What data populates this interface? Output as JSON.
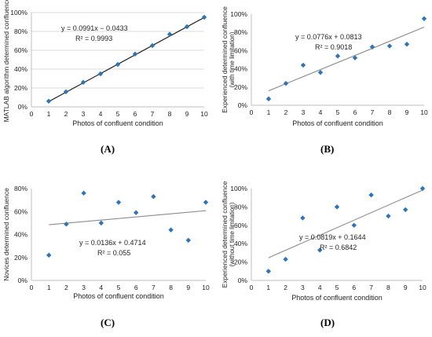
{
  "panel_letters": [
    "(A)",
    "(B)",
    "(C)",
    "(D)"
  ],
  "chart_data": [
    {
      "type": "scatter",
      "panel": "(A)",
      "xlabel": "Photos of confluent condition",
      "ylabel": "MATLAB algorithm determined confluence",
      "x": [
        1,
        2,
        3,
        4,
        5,
        6,
        7,
        8,
        9,
        10
      ],
      "y": [
        0.06,
        0.16,
        0.26,
        0.35,
        0.45,
        0.56,
        0.65,
        0.77,
        0.85,
        0.95
      ],
      "xlim": [
        0,
        10
      ],
      "ylim": [
        0,
        1.0
      ],
      "xticks": [
        "0",
        "1",
        "2",
        "3",
        "4",
        "5",
        "6",
        "7",
        "8",
        "9",
        "10"
      ],
      "yticks": [
        "0%",
        "20%",
        "40%",
        "60%",
        "80%",
        "100%"
      ],
      "trendline": {
        "slope": 0.0991,
        "intercept": -0.0433,
        "show_line_markers": true
      },
      "equation": "y = 0.0991x − 0.0433",
      "r2": "R² = 0.9993",
      "grid": true,
      "marker_color": "#2e75b6",
      "line_color": "#1f1f1f"
    },
    {
      "type": "scatter",
      "panel": "(B)",
      "xlabel": "Photos of confluent condition",
      "ylabel": "Experienced determined confluence",
      "ylabel2": "(with time limitation)",
      "x": [
        1,
        2,
        3,
        4,
        5,
        6,
        7,
        8,
        9,
        10
      ],
      "y": [
        0.07,
        0.24,
        0.44,
        0.36,
        0.54,
        0.52,
        0.64,
        0.65,
        0.67,
        0.95
      ],
      "xlim": [
        0,
        10
      ],
      "ylim": [
        0,
        1.0
      ],
      "xticks": [
        "0",
        "1",
        "2",
        "3",
        "4",
        "5",
        "6",
        "7",
        "8",
        "9",
        "10"
      ],
      "yticks": [
        "0%",
        "20%",
        "40%",
        "60%",
        "80%",
        "100%"
      ],
      "trendline": {
        "slope": 0.0776,
        "intercept": 0.0813
      },
      "equation": "y = 0.0776x + 0.0813",
      "r2": "R² = 0.9018",
      "grid": false,
      "marker_color": "#2e75b6",
      "line_color": "#8c8c8c"
    },
    {
      "type": "scatter",
      "panel": "(C)",
      "xlabel": "Photos of confluent condition",
      "ylabel": "Novices determined confluence",
      "x": [
        1,
        2,
        3,
        4,
        5,
        6,
        7,
        8,
        9,
        10
      ],
      "y": [
        0.22,
        0.49,
        0.76,
        0.5,
        0.68,
        0.59,
        0.73,
        0.44,
        0.35,
        0.68
      ],
      "xlim": [
        0,
        10
      ],
      "ylim": [
        0,
        0.8
      ],
      "xticks": [
        "0",
        "1",
        "2",
        "3",
        "4",
        "5",
        "6",
        "7",
        "8",
        "9",
        "10"
      ],
      "yticks": [
        "0%",
        "20%",
        "40%",
        "60%",
        "80%"
      ],
      "trendline": {
        "slope": 0.0136,
        "intercept": 0.4714
      },
      "equation": "y = 0.0136x + 0.4714",
      "r2": "R² = 0.055",
      "grid": false,
      "marker_color": "#2e75b6",
      "line_color": "#8c8c8c"
    },
    {
      "type": "scatter",
      "panel": "(D)",
      "xlabel": "Photos of confluent condition",
      "ylabel": "Experienced determined confluence",
      "ylabel2": "(without time limitation)",
      "x": [
        1,
        2,
        3,
        4,
        5,
        6,
        7,
        8,
        9,
        10
      ],
      "y": [
        0.1,
        0.23,
        0.68,
        0.33,
        0.8,
        0.6,
        0.93,
        0.7,
        0.77,
        1.0
      ],
      "xlim": [
        0,
        10
      ],
      "ylim": [
        0,
        1.0
      ],
      "xticks": [
        "0",
        "1",
        "2",
        "3",
        "4",
        "5",
        "6",
        "7",
        "8",
        "9",
        "10"
      ],
      "yticks": [
        "0%",
        "20%",
        "40%",
        "60%",
        "80%",
        "100%"
      ],
      "trendline": {
        "slope": 0.0819,
        "intercept": 0.1644
      },
      "equation": "y = 0.0819x + 0.1644",
      "r2": "R² = 0.6842",
      "grid": false,
      "marker_color": "#2e75b6",
      "line_color": "#8c8c8c"
    }
  ]
}
